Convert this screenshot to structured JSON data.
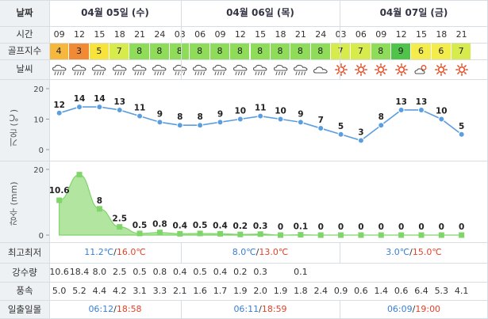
{
  "labels": {
    "date": "날짜",
    "time": "시간",
    "golf": "골프지수",
    "weather": "날씨",
    "temp_axis": "기온 (℃)",
    "rain_axis": "강수 (mm)",
    "minmax": "최고최저",
    "rain": "강수량",
    "wind": "풍속",
    "sun": "일출일몰"
  },
  "dates": [
    "04월 05일 (수)",
    "04월 06일 (목)",
    "04월 07일 (금)"
  ],
  "hours": [
    "09",
    "12",
    "15",
    "18",
    "21",
    "24",
    "03",
    "06",
    "09",
    "12",
    "15",
    "18",
    "21",
    "24",
    "03",
    "06",
    "09",
    "12",
    "15",
    "18",
    "21"
  ],
  "golf_index": [
    4,
    3,
    5,
    7,
    8,
    8,
    8,
    8,
    8,
    8,
    8,
    8,
    8,
    8,
    7,
    7,
    8,
    9,
    6,
    6,
    7
  ],
  "golf_colors": {
    "3": "#f08a34",
    "4": "#f5b73c",
    "5": "#f7e33a",
    "6": "#f4ec4c",
    "7": "#d7ec4c",
    "8": "#8fdc5a",
    "9": "#4fc34a"
  },
  "weather_icons": [
    "rain-icon",
    "rain-icon",
    "rain-icon",
    "rain-icon",
    "rain-icon",
    "rain-icon",
    "rain-icon",
    "rain-icon",
    "rain-icon",
    "rain-icon",
    "rain-icon",
    "rain-icon",
    "rain-icon",
    "cloud-icon",
    "sun-icon",
    "sun-icon",
    "sun-icon",
    "sun-icon",
    "partly-cloudy-icon",
    "sun-icon",
    "sun-icon"
  ],
  "temp_chart": {
    "type": "line",
    "ylim": [
      0,
      20
    ],
    "yticks": [
      "0",
      "10",
      "20"
    ],
    "values": [
      12,
      14,
      14,
      13,
      11,
      9,
      8,
      8,
      9,
      10,
      11,
      10,
      9,
      7,
      5,
      3,
      8,
      13,
      13,
      10,
      5
    ],
    "labels": [
      "12",
      "14",
      "14",
      "13",
      "11",
      "9",
      "8",
      "8",
      "9",
      "10",
      "11",
      "10",
      "9",
      "7",
      "5",
      "3",
      "8",
      "13",
      "13",
      "10",
      "5"
    ],
    "color": "#5b9ee0"
  },
  "rain_chart": {
    "type": "area",
    "ylim": [
      0,
      20
    ],
    "yticks": [
      "0",
      "20"
    ],
    "values": [
      10.6,
      18.4,
      8.0,
      2.5,
      0.5,
      0.8,
      0.4,
      0.5,
      0.4,
      0.2,
      0.3,
      0,
      0.1,
      0,
      0,
      0,
      0,
      0,
      0,
      0,
      0
    ],
    "labels": [
      "10.6",
      "",
      "8",
      "2.5",
      "0.5",
      "0.8",
      "0.4",
      "0.5",
      "0.4",
      "0.2",
      "0.3",
      "0",
      "0.1",
      "0",
      "0",
      "0",
      "0",
      "0",
      "0",
      "0",
      "0"
    ],
    "color": "#7fd46a"
  },
  "minmax": [
    {
      "min": "11.2℃",
      "sep": "/",
      "max": "16.0℃"
    },
    {
      "min": "8.0℃",
      "sep": "/",
      "max": "13.0℃"
    },
    {
      "min": "3.0℃",
      "sep": "/",
      "max": "15.0℃"
    }
  ],
  "rain_amount": [
    "10.6",
    "18.4",
    "8.0",
    "2.5",
    "0.5",
    "0.8",
    "0.4",
    "0.5",
    "0.4",
    "0.2",
    "0.3",
    "",
    "0.1",
    "",
    "",
    "",
    "",
    "",
    "",
    "",
    ""
  ],
  "wind": [
    "5.0",
    "5.2",
    "4.4",
    "4.2",
    "3.1",
    "3.3",
    "2.1",
    "1.6",
    "1.7",
    "1.9",
    "2.0",
    "1.9",
    "1.8",
    "2.4",
    "0.9",
    "0.6",
    "1.4",
    "0.6",
    "6.4",
    "5.3",
    "4.1"
  ],
  "sun": [
    {
      "rise": "06:12",
      "sep": "/",
      "set": "18:58"
    },
    {
      "rise": "06:11",
      "sep": "/",
      "set": "18:59"
    },
    {
      "rise": "06:09",
      "sep": "/",
      "set": "19:00"
    }
  ]
}
